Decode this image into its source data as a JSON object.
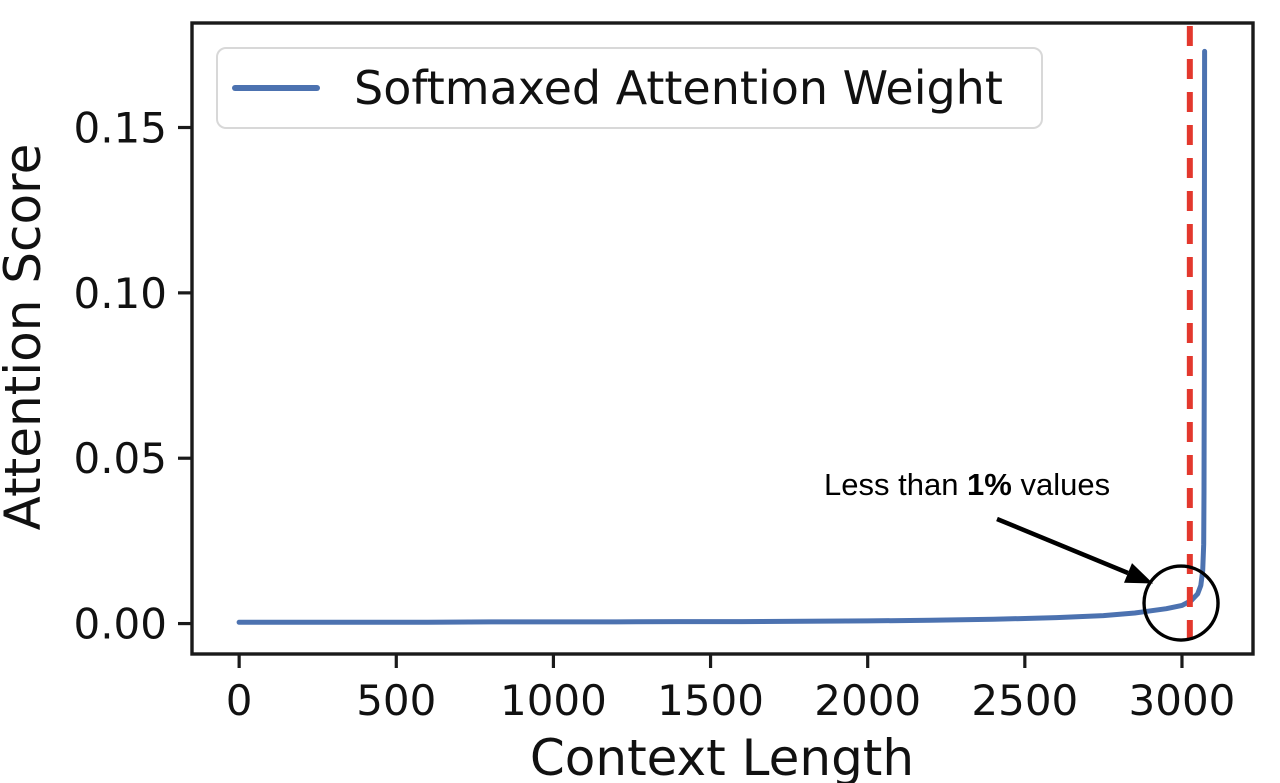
{
  "figure": {
    "background": "#ffffff"
  },
  "chart_data": {
    "type": "line",
    "title": "",
    "xlabel": "Context Length",
    "ylabel": "Attention Score",
    "grid": false,
    "legend_position": "upper-left",
    "xlim": [
      -150,
      3226
    ],
    "ylim": [
      -0.0092,
      0.1816
    ],
    "x_tick_values": [
      0,
      500,
      1000,
      1500,
      2000,
      2500,
      3000
    ],
    "x_tick_labels": [
      "0",
      "500",
      "1000",
      "1500",
      "2000",
      "2500",
      "3000"
    ],
    "y_tick_values": [
      0,
      0.05,
      0.1,
      0.15
    ],
    "y_tick_labels": [
      "0.00",
      "0.05",
      "0.10",
      "0.15"
    ],
    "series": [
      {
        "name": "Softmaxed Attention Weight",
        "color": "#4C72B0",
        "points": [
          [
            0,
            0.0004
          ],
          [
            200,
            0.0004
          ],
          [
            400,
            0.0004
          ],
          [
            600,
            0.0004
          ],
          [
            800,
            0.0005
          ],
          [
            1000,
            0.0005
          ],
          [
            1200,
            0.0005
          ],
          [
            1400,
            0.0006
          ],
          [
            1600,
            0.0006
          ],
          [
            1800,
            0.0007
          ],
          [
            2000,
            0.0008
          ],
          [
            2200,
            0.001
          ],
          [
            2400,
            0.0013
          ],
          [
            2600,
            0.0018
          ],
          [
            2750,
            0.0024
          ],
          [
            2850,
            0.0032
          ],
          [
            2950,
            0.0045
          ],
          [
            3000,
            0.0055
          ],
          [
            3030,
            0.007
          ],
          [
            3050,
            0.009
          ],
          [
            3060,
            0.0115
          ],
          [
            3066,
            0.016
          ],
          [
            3069,
            0.024
          ],
          [
            3070,
            0.04
          ],
          [
            3071,
            0.08
          ],
          [
            3071.5,
            0.12
          ],
          [
            3072,
            0.173
          ]
        ],
        "peak_value": 0.173,
        "peak_x": 3072
      }
    ],
    "vline": {
      "x": 3025,
      "color": "#E3382D",
      "style": "dashed"
    },
    "annotation": {
      "text_prefix": "Less than ",
      "text_bold": "1%",
      "text_suffix": " values",
      "circle_x": 2997,
      "circle_y": 0.0062
    }
  },
  "legend": {
    "label": "Softmaxed Attention Weight"
  }
}
